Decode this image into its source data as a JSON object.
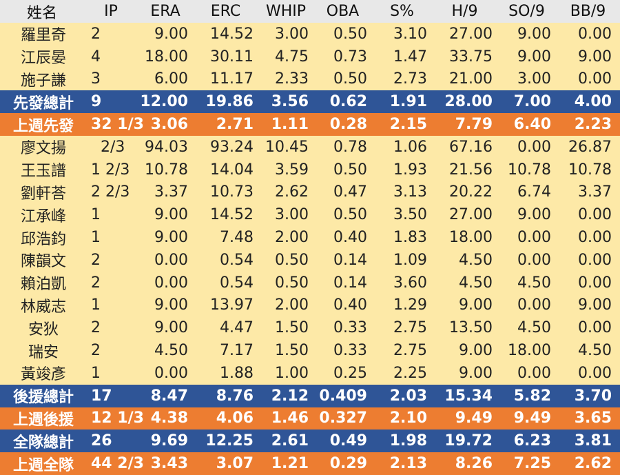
{
  "headers": [
    "姓名",
    "IP",
    "ERA",
    "ERC",
    "WHIP",
    "OBA",
    "S%",
    "H/9",
    "SO/9",
    "BB/9"
  ],
  "rows": [
    {
      "type": "player",
      "cells": [
        "羅里奇",
        "2",
        "9.00",
        "14.52",
        "3.00",
        "0.50",
        "3.10",
        "27.00",
        "9.00",
        "0.00"
      ]
    },
    {
      "type": "player",
      "cells": [
        "江辰晏",
        "4",
        "18.00",
        "30.11",
        "4.75",
        "0.73",
        "1.47",
        "33.75",
        "9.00",
        "9.00"
      ]
    },
    {
      "type": "player",
      "cells": [
        "施子謙",
        "3",
        "6.00",
        "11.17",
        "2.33",
        "0.50",
        "2.73",
        "21.00",
        "3.00",
        "0.00"
      ]
    },
    {
      "type": "total",
      "cells": [
        "先發總計",
        "9",
        "12.00",
        "19.86",
        "3.56",
        "0.62",
        "1.91",
        "28.00",
        "7.00",
        "4.00"
      ]
    },
    {
      "type": "lastweek",
      "cells": [
        "上週先發",
        "32 1/3",
        "3.06",
        "2.71",
        "1.11",
        "0.28",
        "2.15",
        "7.79",
        "6.40",
        "2.23"
      ]
    },
    {
      "type": "player",
      "cells": [
        "廖文揚",
        "  2/3",
        "94.03",
        "93.24",
        "10.45",
        "0.78",
        "1.06",
        "67.16",
        "0.00",
        "26.87"
      ]
    },
    {
      "type": "player",
      "cells": [
        "王玉譜",
        "1 2/3",
        "10.78",
        "14.04",
        "3.59",
        "0.50",
        "1.93",
        "21.56",
        "10.78",
        "10.78"
      ]
    },
    {
      "type": "player",
      "cells": [
        "劉軒荅",
        "2 2/3",
        "3.37",
        "10.73",
        "2.62",
        "0.47",
        "3.13",
        "20.22",
        "6.74",
        "3.37"
      ]
    },
    {
      "type": "player",
      "cells": [
        "江承峰",
        "1",
        "9.00",
        "14.52",
        "3.00",
        "0.50",
        "3.50",
        "27.00",
        "9.00",
        "0.00"
      ]
    },
    {
      "type": "player",
      "cells": [
        "邱浩鈞",
        "1",
        "9.00",
        "7.48",
        "2.00",
        "0.40",
        "1.83",
        "18.00",
        "0.00",
        "0.00"
      ]
    },
    {
      "type": "player",
      "cells": [
        "陳韻文",
        "2",
        "0.00",
        "0.54",
        "0.50",
        "0.14",
        "1.09",
        "4.50",
        "0.00",
        "0.00"
      ]
    },
    {
      "type": "player",
      "cells": [
        "賴泊凱",
        "2",
        "0.00",
        "0.54",
        "0.50",
        "0.14",
        "3.60",
        "4.50",
        "4.50",
        "0.00"
      ]
    },
    {
      "type": "player",
      "cells": [
        "林威志",
        "1",
        "9.00",
        "13.97",
        "2.00",
        "0.40",
        "1.29",
        "9.00",
        "0.00",
        "9.00"
      ]
    },
    {
      "type": "player",
      "cells": [
        "安狄",
        "2",
        "9.00",
        "4.47",
        "1.50",
        "0.33",
        "2.75",
        "13.50",
        "4.50",
        "0.00"
      ]
    },
    {
      "type": "player",
      "cells": [
        "瑞安",
        "2",
        "4.50",
        "7.17",
        "1.50",
        "0.33",
        "2.75",
        "9.00",
        "18.00",
        "4.50"
      ]
    },
    {
      "type": "player",
      "cells": [
        "黃竣彥",
        "1",
        "0.00",
        "1.88",
        "1.00",
        "0.25",
        "2.25",
        "9.00",
        "0.00",
        "0.00"
      ]
    },
    {
      "type": "total",
      "cells": [
        "後援總計",
        "17",
        "8.47",
        "8.76",
        "2.12",
        "0.409",
        "2.03",
        "15.34",
        "5.82",
        "3.70"
      ]
    },
    {
      "type": "lastweek",
      "cells": [
        "上週後援",
        "12 1/3",
        "4.38",
        "4.06",
        "1.46",
        "0.327",
        "2.10",
        "9.49",
        "9.49",
        "3.65"
      ]
    },
    {
      "type": "total",
      "cells": [
        "全隊總計",
        "26",
        "9.69",
        "12.25",
        "2.61",
        "0.49",
        "1.98",
        "19.72",
        "6.23",
        "3.81"
      ]
    },
    {
      "type": "lastweek",
      "cells": [
        "上週全隊",
        "44 2/3",
        "3.43",
        "3.07",
        "1.21",
        "0.29",
        "2.13",
        "8.26",
        "7.25",
        "2.62"
      ]
    }
  ],
  "colors": {
    "header": "#e8e8e8",
    "player": "#fde9a7",
    "total": "#2f5597",
    "lastweek": "#ed7d31"
  }
}
